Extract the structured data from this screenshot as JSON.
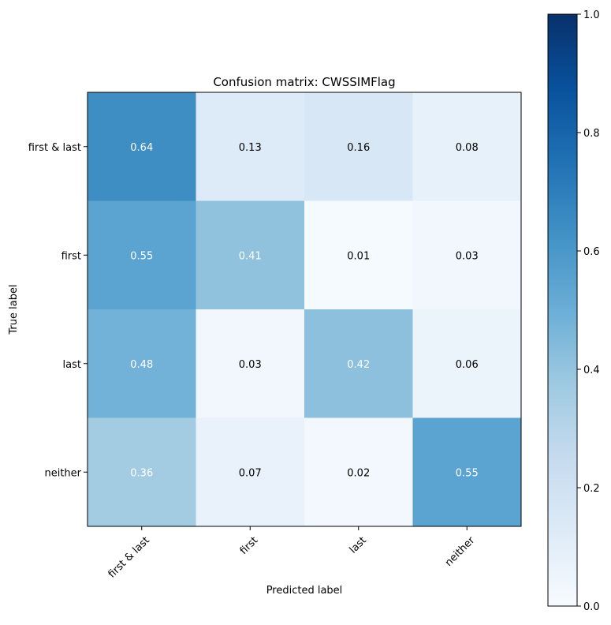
{
  "chart_data": {
    "type": "heatmap",
    "title": "Confusion matrix: CWSSIMFlag",
    "xlabel": "Predicted label",
    "ylabel": "True label",
    "x_categories": [
      "first & last",
      "first",
      "last",
      "neither"
    ],
    "y_categories": [
      "first & last",
      "first",
      "last",
      "neither"
    ],
    "values": [
      [
        0.64,
        0.13,
        0.16,
        0.08
      ],
      [
        0.55,
        0.41,
        0.01,
        0.03
      ],
      [
        0.48,
        0.03,
        0.42,
        0.06
      ],
      [
        0.36,
        0.07,
        0.02,
        0.55
      ]
    ],
    "value_labels": [
      [
        "0.64",
        "0.13",
        "0.16",
        "0.08"
      ],
      [
        "0.55",
        "0.41",
        "0.01",
        "0.03"
      ],
      [
        "0.48",
        "0.03",
        "0.42",
        "0.06"
      ],
      [
        "0.36",
        "0.07",
        "0.02",
        "0.55"
      ]
    ],
    "colormap": "Blues",
    "color_range": [
      0,
      1
    ],
    "colorbar_ticks": [
      "0.0",
      "0.2",
      "0.4",
      "0.6",
      "0.8",
      "1.0"
    ],
    "grid": false
  }
}
